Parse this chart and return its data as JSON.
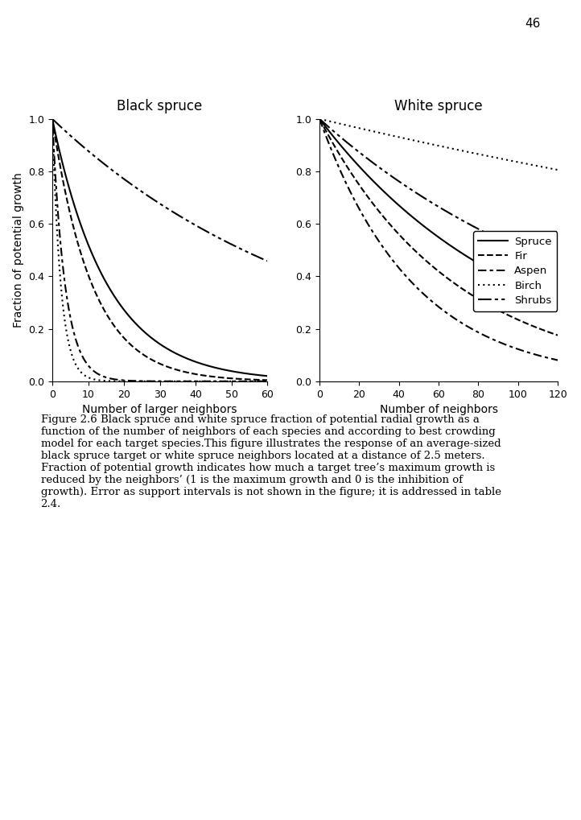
{
  "black_spruce_title": "Black spruce",
  "white_spruce_title": "White spruce",
  "black_spruce_xlabel": "Number of larger neighbors",
  "white_spruce_xlabel": "Number of neighbors",
  "ylabel": "Fraction of potential growth",
  "black_spruce_xlim": [
    0,
    60
  ],
  "white_spruce_xlim": [
    0,
    120
  ],
  "ylim": [
    0.0,
    1.0
  ],
  "black_spruce_xticks": [
    0,
    10,
    20,
    30,
    40,
    50,
    60
  ],
  "white_spruce_xticks": [
    0,
    20,
    40,
    60,
    80,
    100,
    120
  ],
  "yticks": [
    0.0,
    0.2,
    0.4,
    0.6,
    0.8,
    1.0
  ],
  "species": [
    "Spruce",
    "Fir",
    "Aspen",
    "Birch",
    "Shrubs"
  ],
  "page_number": "46",
  "caption": "Figure 2.6 Black spruce and white spruce fraction of potential radial growth as a\nfunction of the number of neighbors of each species and according to best crowding\nmodel for each target species.This figure illustrates the response of an average-sized\nblack spruce target or white spruce neighbors located at a distance of 2.5 meters.\nFraction of potential growth indicates how much a target tree’s maximum growth is\nreduced by the neighbors’ (1 is the maximum growth and 0 is the inhibition of\ngrowth). Error as support intervals is not shown in the figure; it is addressed in table\n2.4.",
  "bs_params": {
    "Spruce": {
      "alpha": 0.065
    },
    "Fir": {
      "alpha": 0.09
    },
    "Aspen": {
      "alpha": 0.28
    },
    "Birch": {
      "alpha": 0.42
    },
    "Shrubs": {
      "alpha": 0.013
    }
  },
  "ws_params": {
    "Spruce": {
      "alpha": 0.01
    },
    "Fir": {
      "alpha": 0.0145
    },
    "Aspen": {
      "alpha": 0.021
    },
    "Birch": {
      "alpha": 0.0018
    },
    "Shrubs": {
      "alpha": 0.0068
    }
  }
}
